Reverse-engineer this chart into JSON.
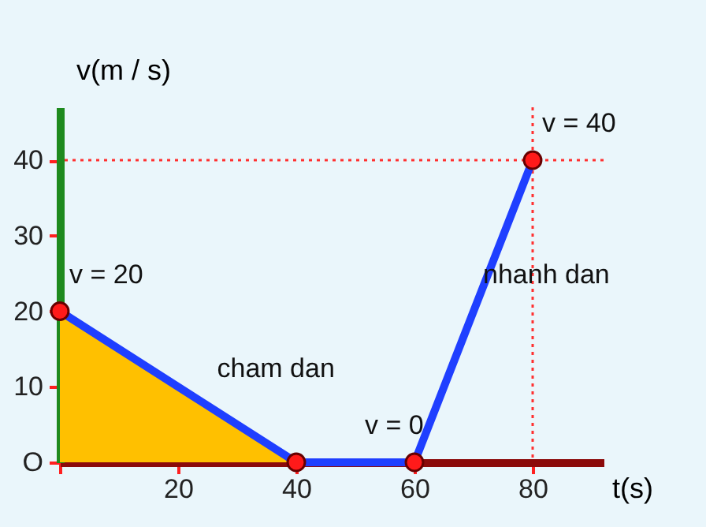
{
  "chart_data": {
    "type": "line",
    "xlabel": "t(s)",
    "ylabel": "v(m / s)",
    "xlim": [
      0,
      92
    ],
    "ylim": [
      0,
      47
    ],
    "xticks": [
      {
        "value": 0,
        "label": null
      },
      20,
      40,
      60,
      80
    ],
    "yticks": [
      {
        "value": 0,
        "label": "O"
      },
      10,
      20,
      30,
      40
    ],
    "series": [
      {
        "type": "area",
        "color": "#ffc000",
        "x": [
          0,
          40
        ],
        "values": [
          20,
          0
        ]
      },
      {
        "color": "#1f3fff",
        "x": [
          0,
          40,
          60,
          80
        ],
        "values": [
          20,
          0,
          0,
          40
        ]
      }
    ],
    "marker": "circle",
    "grid": false,
    "ref_lines": [
      {
        "axis": "y",
        "value": 40,
        "color": "#ff3030",
        "line_style": "dotted"
      },
      {
        "axis": "x",
        "value": 80,
        "color": "#ff3030",
        "line_style": "dotted"
      }
    ],
    "annotations": [
      {
        "text": "v = 20",
        "x": 0,
        "y": 20
      },
      {
        "text": "cham dan",
        "x": 25,
        "y": 7.5
      },
      {
        "text": "v = 0",
        "x": 50,
        "y": 0
      },
      {
        "text": "nhanh dan",
        "x": 70,
        "y": 20
      },
      {
        "text": "v = 40",
        "x": 80,
        "y": 40
      }
    ]
  }
}
